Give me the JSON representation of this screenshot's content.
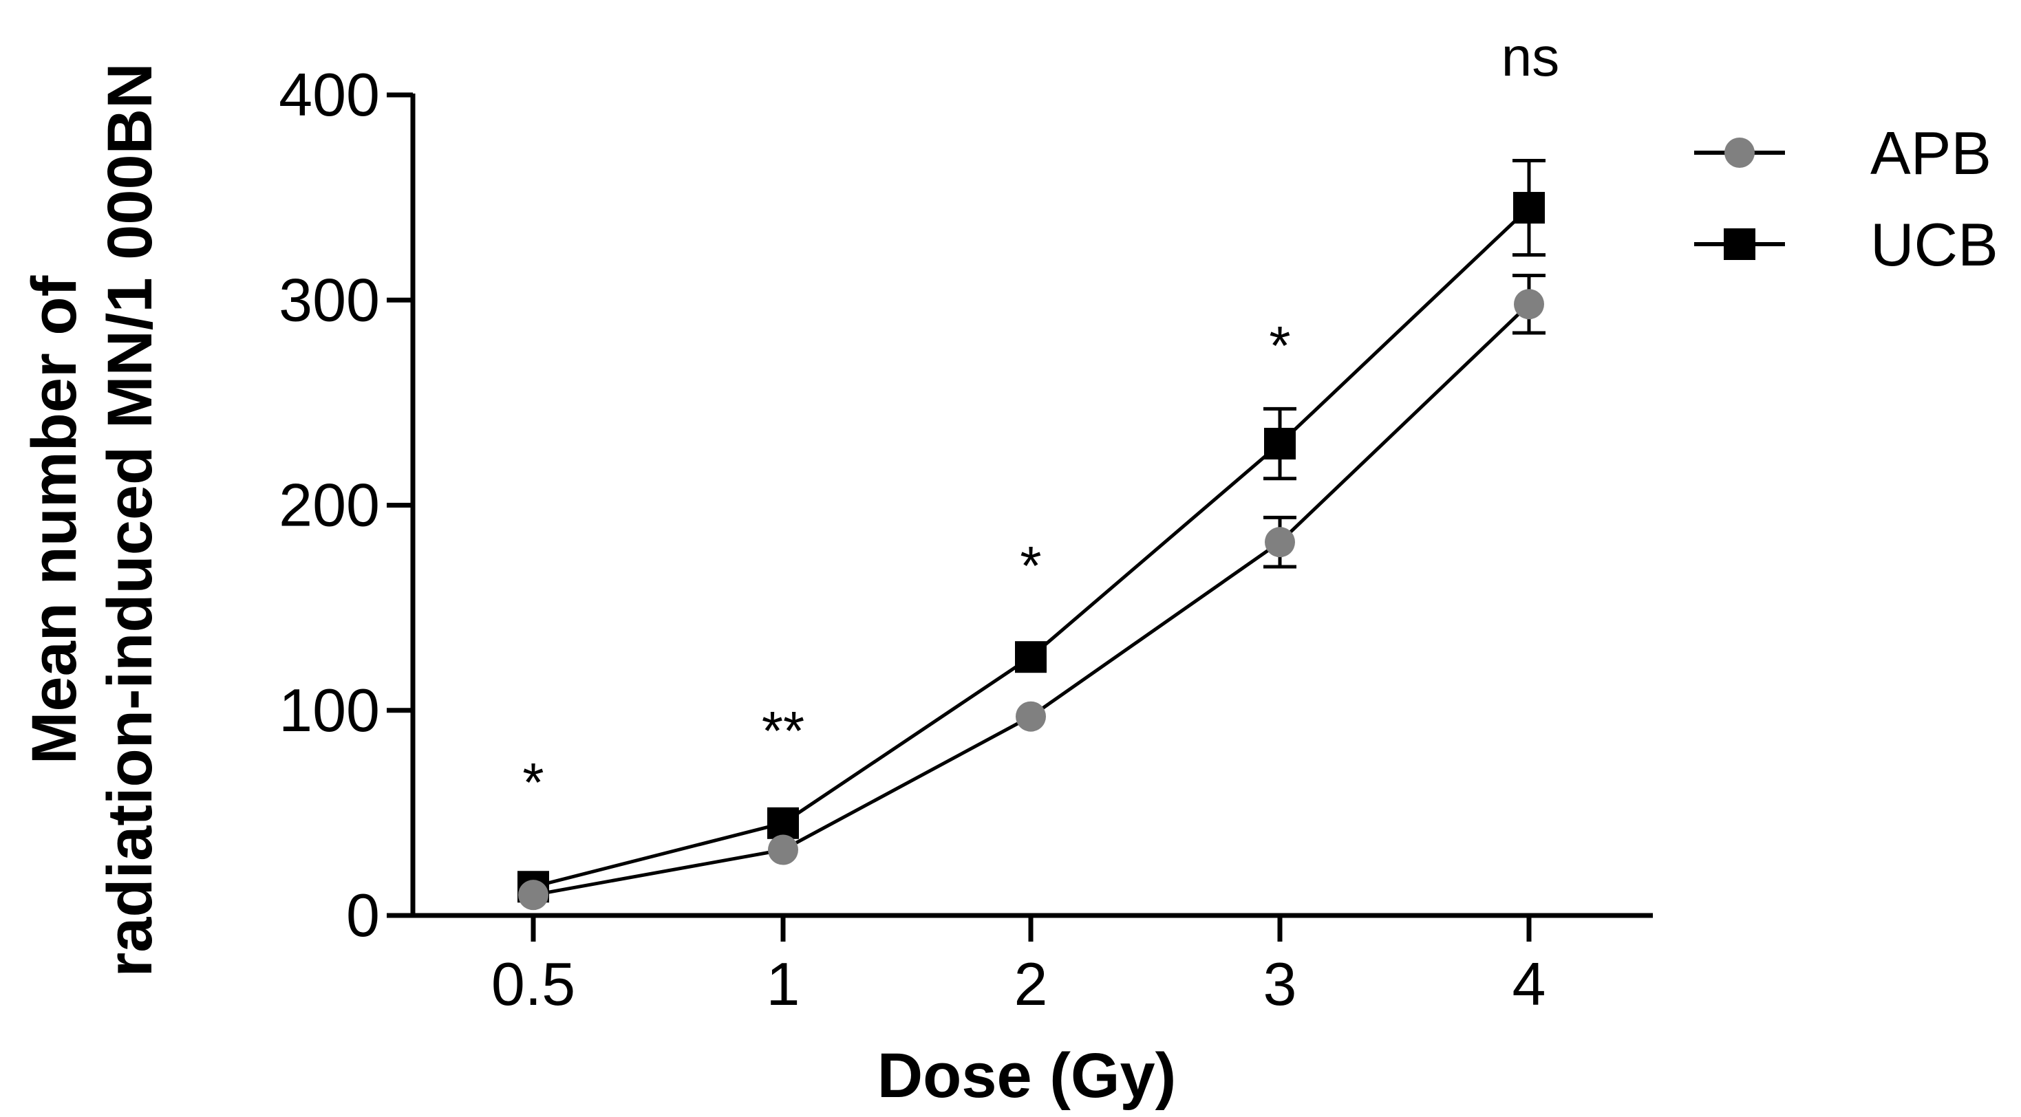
{
  "chart_data": {
    "type": "line",
    "title": "",
    "xlabel": "Dose (Gy)",
    "ylabel_lines": [
      "Mean number of",
      "radiation-induced MN/1 000BN"
    ],
    "categories": [
      "0.5",
      "1",
      "2",
      "3",
      "4"
    ],
    "ylim": [
      0,
      400
    ],
    "yticks": [
      "0",
      "100",
      "200",
      "300",
      "400"
    ],
    "series": [
      {
        "name": "APB",
        "marker": "circle",
        "color": "#808080",
        "values": [
          10,
          32,
          97,
          182,
          298
        ],
        "errors": [
          0,
          0,
          0,
          12,
          14
        ]
      },
      {
        "name": "UCB",
        "marker": "square",
        "color": "#000000",
        "values": [
          14,
          45,
          126,
          230,
          345
        ],
        "errors": [
          0,
          0,
          0,
          17,
          23
        ]
      }
    ],
    "significance": [
      "*",
      "**",
      "*",
      "*",
      "ns"
    ],
    "legend_position": "top-right"
  }
}
